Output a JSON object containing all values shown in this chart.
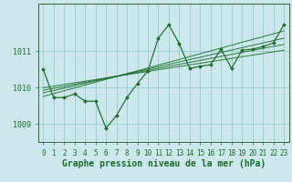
{
  "bg_color": "#cce8ec",
  "grid_color": "#99cccc",
  "line_color": "#1a6b2a",
  "xlabel": "Graphe pression niveau de la mer (hPa)",
  "xlim": [
    -0.5,
    23.5
  ],
  "ylim": [
    1008.5,
    1012.3
  ],
  "yticks": [
    1009,
    1010,
    1011
  ],
  "xticks": [
    0,
    1,
    2,
    3,
    4,
    5,
    6,
    7,
    8,
    9,
    10,
    11,
    12,
    13,
    14,
    15,
    16,
    17,
    18,
    19,
    20,
    21,
    22,
    23
  ],
  "main_x": [
    0,
    1,
    2,
    3,
    4,
    5,
    6,
    7,
    8,
    9,
    10,
    11,
    12,
    13,
    14,
    15,
    16,
    17,
    18,
    19,
    20,
    21,
    22,
    23
  ],
  "main_y": [
    1010.5,
    1009.72,
    1009.72,
    1009.82,
    1009.62,
    1009.62,
    1008.88,
    1009.22,
    1009.72,
    1010.1,
    1010.45,
    1011.35,
    1011.72,
    1011.2,
    1010.52,
    1010.58,
    1010.62,
    1011.05,
    1010.52,
    1011.02,
    1011.05,
    1011.12,
    1011.22,
    1011.72
  ],
  "trend_lines": [
    {
      "x": [
        0,
        23
      ],
      "y": [
        1009.75,
        1011.55
      ]
    },
    {
      "x": [
        0,
        23
      ],
      "y": [
        1009.85,
        1011.35
      ]
    },
    {
      "x": [
        0,
        23
      ],
      "y": [
        1009.92,
        1011.18
      ]
    },
    {
      "x": [
        0,
        23
      ],
      "y": [
        1009.99,
        1011.02
      ]
    }
  ],
  "tick_fontsize": 5.5,
  "label_fontsize": 7,
  "spine_color": "#336633"
}
